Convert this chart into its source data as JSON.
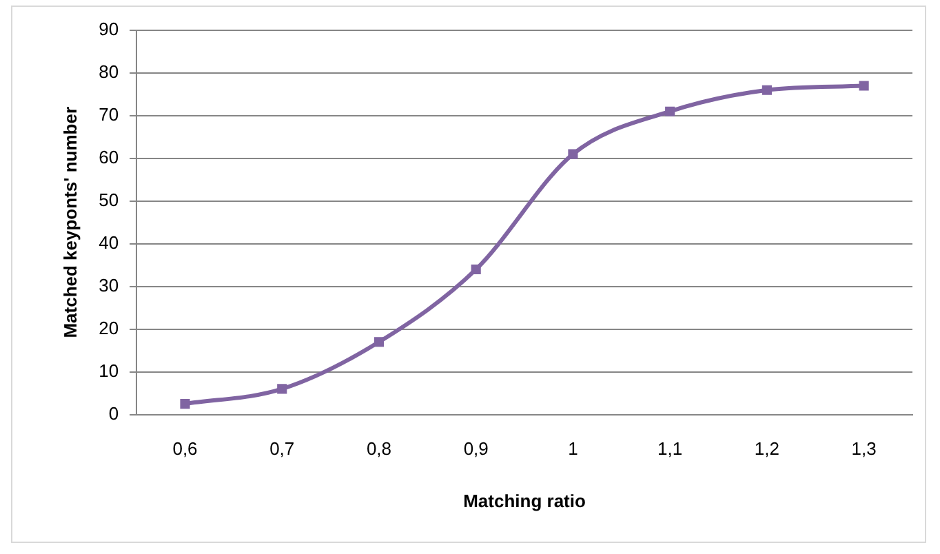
{
  "chart_data": {
    "type": "line",
    "xlabel": "Matching ratio",
    "ylabel": "Matched keyponts' number",
    "categories": [
      "0,6",
      "0,7",
      "0,8",
      "0,9",
      "1",
      "1,1",
      "1,2",
      "1,3"
    ],
    "series": [
      {
        "color": "#8064a2",
        "values": [
          2.5,
          6,
          17,
          34,
          61,
          71,
          76,
          77
        ]
      }
    ],
    "ylim": [
      0,
      90
    ],
    "yticks": [
      0,
      10,
      20,
      30,
      40,
      50,
      60,
      70,
      80,
      90
    ],
    "grid": "y",
    "legend": false,
    "marker": "square",
    "line_style": "solid"
  }
}
